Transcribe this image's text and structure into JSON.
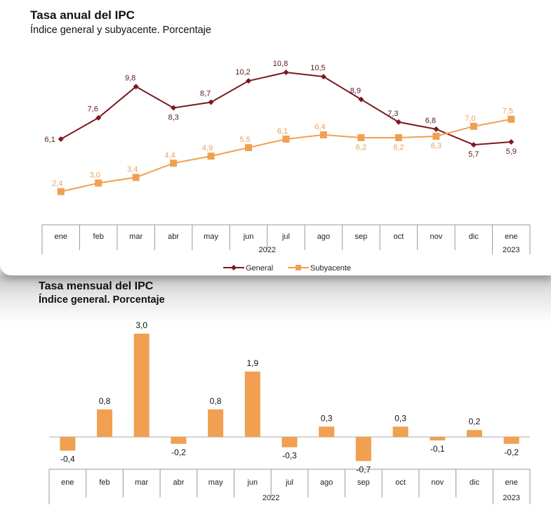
{
  "chart_data": [
    {
      "type": "line",
      "title": "Tasa anual del IPC",
      "subtitle": "Índice general y subyacente. Porcentaje",
      "categories": [
        "ene",
        "feb",
        "mar",
        "abr",
        "may",
        "jun",
        "jul",
        "ago",
        "sep",
        "oct",
        "nov",
        "dic",
        "ene"
      ],
      "year_labels": [
        "2022",
        "2023"
      ],
      "series": [
        {
          "name": "General",
          "color": "#7b1a1f",
          "marker": "diamond",
          "values": [
            6.1,
            7.6,
            9.8,
            8.3,
            8.7,
            10.2,
            10.8,
            10.5,
            8.9,
            7.3,
            6.8,
            5.7,
            5.9
          ],
          "labels": [
            "6,1",
            "7,6",
            "9,8",
            "8,3",
            "8,7",
            "10,2",
            "10,8",
            "10,5",
            "8,9",
            "7,3",
            "6,8",
            "5,7",
            "5,9"
          ]
        },
        {
          "name": "Subyacente",
          "color": "#f0a050",
          "marker": "square",
          "values": [
            2.4,
            3.0,
            3.4,
            4.4,
            4.9,
            5.5,
            6.1,
            6.4,
            6.2,
            6.2,
            6.3,
            7.0,
            7.5
          ],
          "labels": [
            "2,4",
            "3,0",
            "3,4",
            "4,4",
            "4,9",
            "5,5",
            "6,1",
            "6,4",
            "6,2",
            "6,2",
            "6,3",
            "7,0",
            "7,5"
          ]
        }
      ],
      "legend": "bottom",
      "grid": false
    },
    {
      "type": "bar",
      "title": "Tasa mensual del IPC",
      "subtitle": "Índice general. Porcentaje",
      "categories": [
        "ene",
        "feb",
        "mar",
        "abr",
        "may",
        "jun",
        "jul",
        "ago",
        "sep",
        "oct",
        "nov",
        "dic",
        "ene"
      ],
      "year_labels": [
        "2022",
        "2023"
      ],
      "color": "#f0a050",
      "values": [
        -0.4,
        0.8,
        3.0,
        -0.2,
        0.8,
        1.9,
        -0.3,
        0.3,
        -0.7,
        0.3,
        -0.1,
        0.2,
        -0.2
      ],
      "labels": [
        "-0,4",
        "0,8",
        "3,0",
        "-0,2",
        "0,8",
        "1,9",
        "-0,3",
        "0,3",
        "-0,7",
        "0,3",
        "-0,1",
        "0,2",
        "-0,2"
      ],
      "grid": false
    }
  ]
}
